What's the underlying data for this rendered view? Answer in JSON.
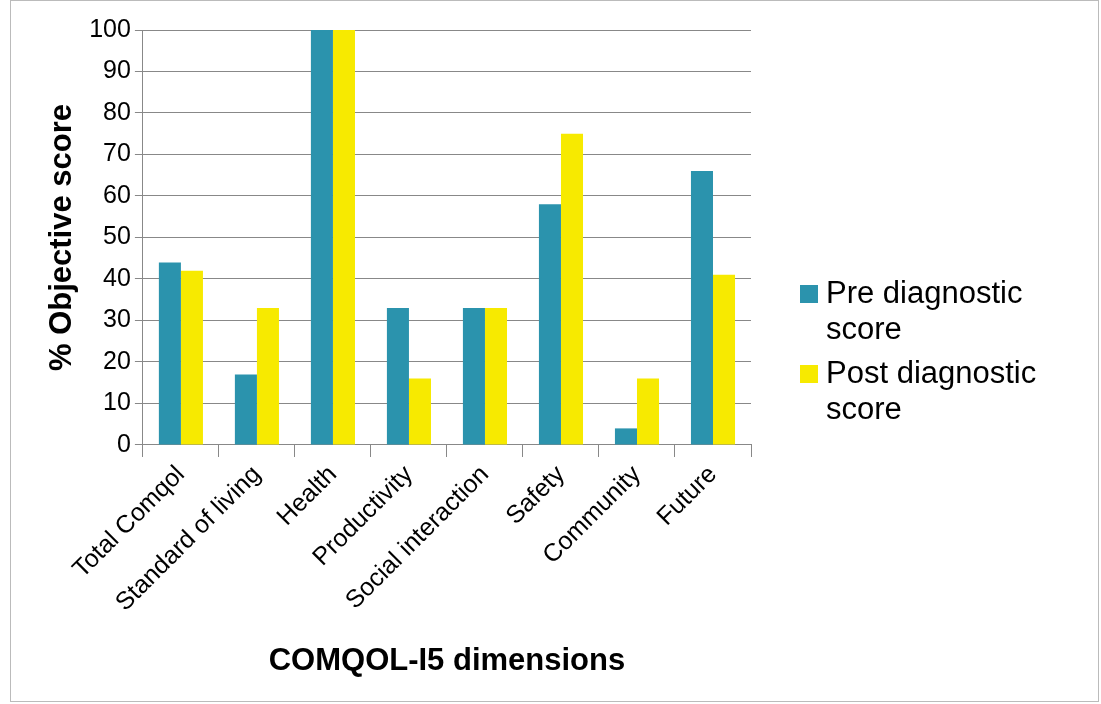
{
  "chart_data": {
    "type": "bar",
    "xlabel": "COMQOL-I5 dimensions",
    "ylabel": "% Objective score",
    "categories": [
      "Total Comqol",
      "Standard of living",
      "Health",
      "Productivity",
      "Social interaction",
      "Safety",
      "Community",
      "Future"
    ],
    "series": [
      {
        "name": "Pre diagnostic score",
        "color": "#2b93ad",
        "values": [
          44,
          17,
          100,
          33,
          33,
          58,
          4,
          66
        ]
      },
      {
        "name": "Post diagnostic score",
        "color": "#f7ea00",
        "values": [
          42,
          33,
          100,
          16,
          33,
          75,
          16,
          41
        ]
      }
    ],
    "ylim": [
      0,
      100
    ],
    "yticks": [
      0,
      10,
      20,
      30,
      40,
      50,
      60,
      70,
      80,
      90,
      100
    ],
    "grid": "y",
    "legend": "right"
  }
}
